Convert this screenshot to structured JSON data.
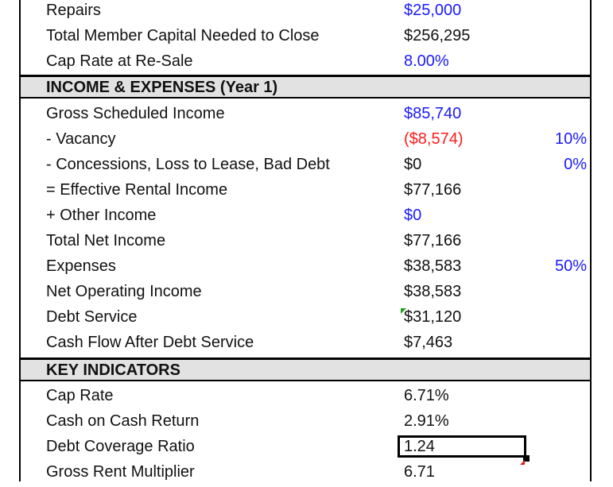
{
  "top_rows": [
    {
      "label": "Repairs",
      "value": "$25,000",
      "value_color": "blue"
    },
    {
      "label": "Total Member Capital Needed to Close",
      "value": "$256,295",
      "value_color": "black"
    },
    {
      "label": "Cap Rate at Re-Sale",
      "value": "8.00%",
      "value_color": "blue"
    }
  ],
  "sections": {
    "income": "INCOME & EXPENSES (Year 1)",
    "key": "KEY INDICATORS"
  },
  "income_rows": [
    {
      "label": "Gross Scheduled Income",
      "value": "$85,740",
      "value_color": "blue",
      "pct": ""
    },
    {
      "label": "- Vacancy",
      "value": "($8,574)",
      "value_color": "red",
      "pct": "10%"
    },
    {
      "label": "- Concessions, Loss to Lease, Bad Debt",
      "value": "$0",
      "value_color": "black",
      "pct": "0%"
    },
    {
      "label": "= Effective Rental Income",
      "value": "$77,166",
      "value_color": "black",
      "pct": ""
    },
    {
      "label": "+ Other Income",
      "value": "$0",
      "value_color": "blue",
      "pct": ""
    },
    {
      "label": "Total Net Income",
      "value": "$77,166",
      "value_color": "black",
      "pct": ""
    },
    {
      "label": "Expenses",
      "value": "$38,583",
      "value_color": "black",
      "pct": "50%"
    },
    {
      "label": "Net Operating Income",
      "value": "$38,583",
      "value_color": "black",
      "pct": ""
    },
    {
      "label": "Debt Service",
      "value": "$31,120",
      "value_color": "black",
      "pct": ""
    },
    {
      "label": "Cash Flow After Debt Service",
      "value": "$7,463",
      "value_color": "black",
      "pct": ""
    }
  ],
  "key_rows": [
    {
      "label": "Cap Rate",
      "value": "6.71%"
    },
    {
      "label": "Cash on Cash Return",
      "value": "2.91%"
    },
    {
      "label": "Debt Coverage Ratio",
      "value": "1.24"
    },
    {
      "label": "Gross Rent Multiplier",
      "value": "6.71"
    }
  ]
}
